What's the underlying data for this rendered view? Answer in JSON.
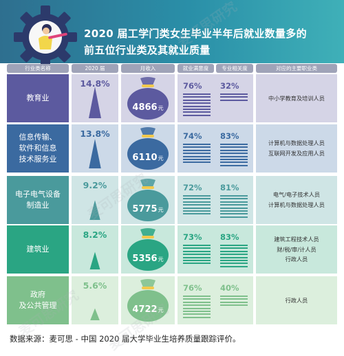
{
  "title": {
    "line1": "2020 届工学门类女生毕业半年后就业数量多的",
    "line2": "前五位行业类及其就业质量"
  },
  "headers": [
    "行业类名称",
    "2020 届",
    "月收入",
    "就业满意度",
    "专业相关度",
    "对应的主要职业类"
  ],
  "currency_unit": "元",
  "footer": "数据来源：麦可思 - 中国 2020 届大学毕业生培养质量跟踪评价。",
  "watermark_text": "麦可思研究",
  "colors": {
    "header_gradient": [
      "#2e6f8f",
      "#3fb0b8"
    ],
    "header_label_bg": "#9fa3b8"
  },
  "chart_data": {
    "type": "table",
    "columns": [
      "行业类名称",
      "2020 届",
      "月收入",
      "就业满意度",
      "专业相关度",
      "对应的主要职业类"
    ],
    "rows": [
      {
        "industry": "教育业",
        "share": "14.8%",
        "share_value": 14.8,
        "income": "4866",
        "income_value": 4866,
        "satisfaction": "76%",
        "satisfaction_value": 76,
        "relevance": "32%",
        "relevance_value": 32,
        "occupations": "中小学教育及培训人员",
        "color": "#5c5a9f",
        "light": "#d5d4e6"
      },
      {
        "industry": "信息传输、\n软件和信息\n技术服务业",
        "share": "13.8%",
        "share_value": 13.8,
        "income": "6110",
        "income_value": 6110,
        "satisfaction": "74%",
        "satisfaction_value": 74,
        "relevance": "83%",
        "relevance_value": 83,
        "occupations": "计算机与数据处理人员\n互联网开发及应用人员",
        "color": "#3b6aa0",
        "light": "#ccd9e8"
      },
      {
        "industry": "电子电气设备\n制造业",
        "share": "9.2%",
        "share_value": 9.2,
        "income": "5775",
        "income_value": 5775,
        "satisfaction": "72%",
        "satisfaction_value": 72,
        "relevance": "81%",
        "relevance_value": 81,
        "occupations": "电气/电子技术人员\n计算机与数据处理人员",
        "color": "#4a9a9c",
        "light": "#cfe5e5"
      },
      {
        "industry": "建筑业",
        "share": "8.2%",
        "share_value": 8.2,
        "income": "5356",
        "income_value": 5356,
        "satisfaction": "73%",
        "satisfaction_value": 73,
        "relevance": "83%",
        "relevance_value": 83,
        "occupations": "建筑工程技术人员\n财/税/审/计人员\n行政人员",
        "color": "#2aa583",
        "light": "#c8e8dc"
      },
      {
        "industry": "政府\n及公共管理",
        "share": "5.6%",
        "share_value": 5.6,
        "income": "4722",
        "income_value": 4722,
        "satisfaction": "76%",
        "satisfaction_value": 76,
        "relevance": "40%",
        "relevance_value": 40,
        "occupations": "行政人员",
        "color": "#7fc08c",
        "light": "#dcefdd"
      }
    ]
  }
}
